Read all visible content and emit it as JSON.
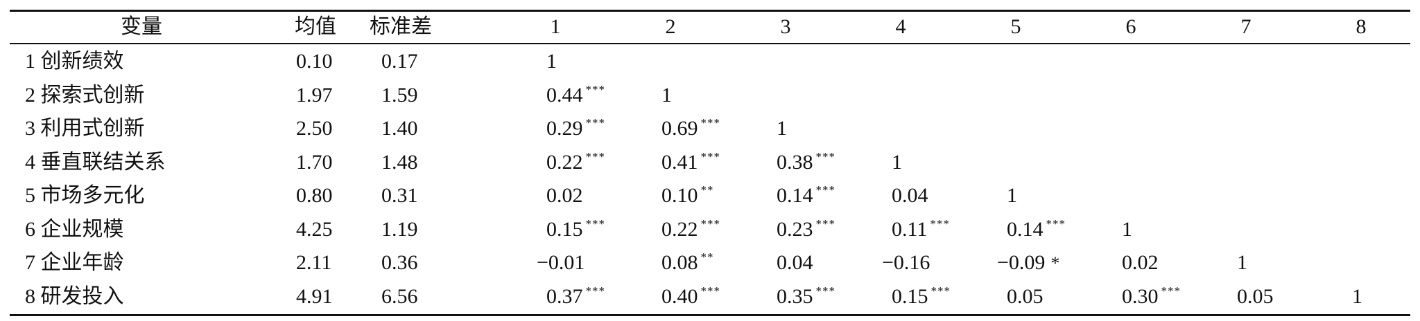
{
  "headers": [
    "变量",
    "均值",
    "标准差",
    "1",
    "2",
    "3",
    "4",
    "5",
    "6",
    "7",
    "8"
  ],
  "rows": [
    {
      "name": "1 创新绩效",
      "mean": "0.10",
      "sd": "0.17",
      "corr": [
        {
          "v": "1",
          "s": ""
        }
      ]
    },
    {
      "name": "2 探索式创新",
      "mean": "1.97",
      "sd": "1.59",
      "corr": [
        {
          "v": "0.44",
          "s": "***"
        },
        {
          "v": "1",
          "s": ""
        }
      ]
    },
    {
      "name": "3 利用式创新",
      "mean": "2.50",
      "sd": "1.40",
      "corr": [
        {
          "v": "0.29",
          "s": "***"
        },
        {
          "v": "0.69",
          "s": "***"
        },
        {
          "v": "1",
          "s": ""
        }
      ]
    },
    {
      "name": "4 垂直联结关系",
      "mean": "1.70",
      "sd": "1.48",
      "corr": [
        {
          "v": "0.22",
          "s": "***"
        },
        {
          "v": "0.41",
          "s": "***"
        },
        {
          "v": "0.38",
          "s": "***"
        },
        {
          "v": "1",
          "s": ""
        }
      ]
    },
    {
      "name": "5 市场多元化",
      "mean": "0.80",
      "sd": "0.31",
      "corr": [
        {
          "v": "0.02",
          "s": ""
        },
        {
          "v": "0.10",
          "s": "**"
        },
        {
          "v": "0.14",
          "s": "***"
        },
        {
          "v": "0.04",
          "s": ""
        },
        {
          "v": "1",
          "s": ""
        }
      ]
    },
    {
      "name": "6 企业规模",
      "mean": "4.25",
      "sd": "1.19",
      "corr": [
        {
          "v": "0.15",
          "s": "***"
        },
        {
          "v": "0.22",
          "s": "***"
        },
        {
          "v": "0.23",
          "s": "***"
        },
        {
          "v": "0.11",
          "s": "***"
        },
        {
          "v": "0.14",
          "s": "***"
        },
        {
          "v": "1",
          "s": ""
        }
      ]
    },
    {
      "name": "7 企业年龄",
      "mean": "2.11",
      "sd": "0.36",
      "corr": [
        {
          "v": "−0.01",
          "s": ""
        },
        {
          "v": "0.08",
          "s": "**"
        },
        {
          "v": "0.04",
          "s": ""
        },
        {
          "v": "−0.16",
          "s": ""
        },
        {
          "v": "−0.09",
          "s": "*"
        },
        {
          "v": "0.02",
          "s": ""
        },
        {
          "v": "1",
          "s": ""
        }
      ]
    },
    {
      "name": "8 研发投入",
      "mean": "4.91",
      "sd": "6.56",
      "corr": [
        {
          "v": "0.37",
          "s": "***"
        },
        {
          "v": "0.40",
          "s": "***"
        },
        {
          "v": "0.35",
          "s": "***"
        },
        {
          "v": "0.15",
          "s": "***"
        },
        {
          "v": "0.05",
          "s": ""
        },
        {
          "v": "0.30",
          "s": "***"
        },
        {
          "v": "0.05",
          "s": ""
        },
        {
          "v": "1",
          "s": ""
        }
      ]
    }
  ]
}
